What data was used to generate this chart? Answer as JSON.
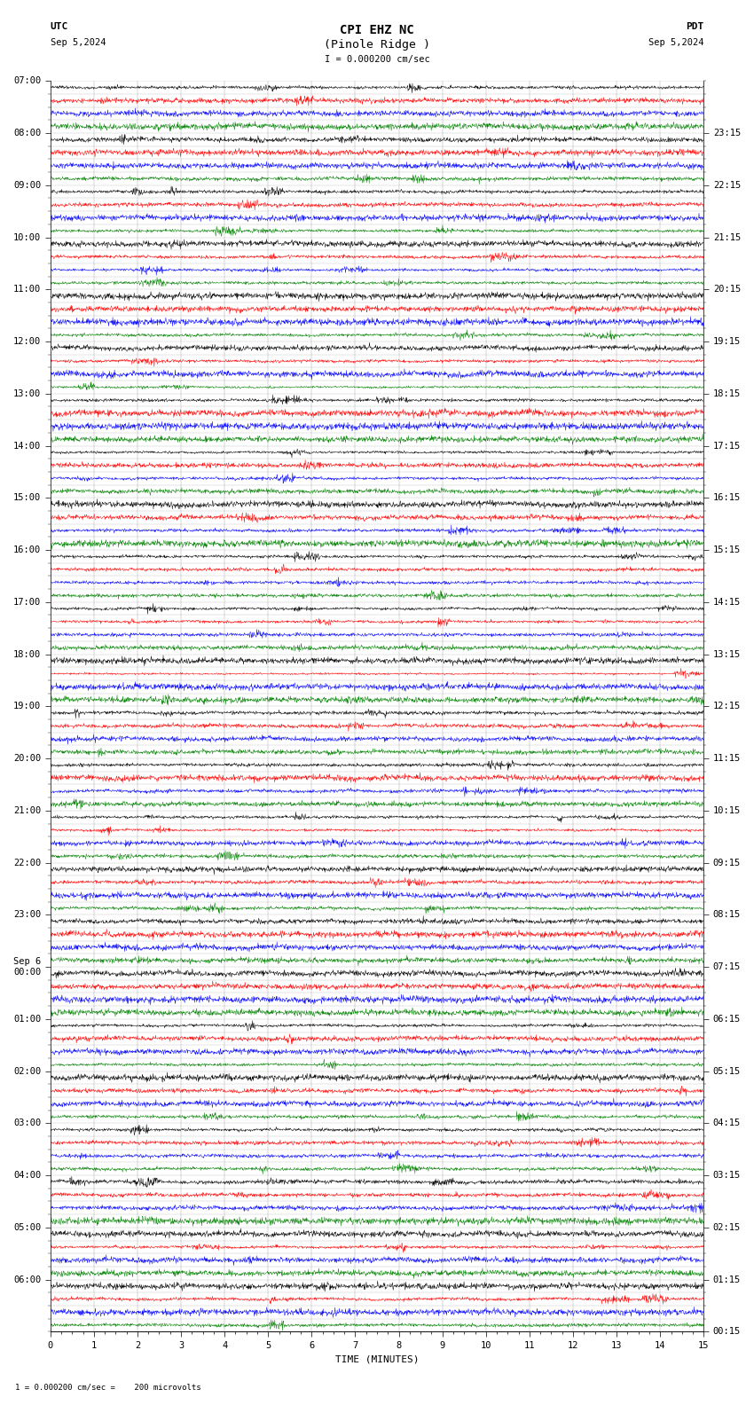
{
  "title_line1": "CPI EHZ NC",
  "title_line2": "(Pinole Ridge )",
  "scale_label": "= 0.000200 cm/sec",
  "utc_label": "UTC",
  "utc_date": "Sep 5,2024",
  "pdt_label": "PDT",
  "pdt_date": "Sep 5,2024",
  "bottom_label": "1 = 0.000200 cm/sec =    200 microvolts",
  "xlabel": "TIME (MINUTES)",
  "left_times_major": [
    "07:00",
    "08:00",
    "09:00",
    "10:00",
    "11:00",
    "12:00",
    "13:00",
    "14:00",
    "15:00",
    "16:00",
    "17:00",
    "18:00",
    "19:00",
    "20:00",
    "21:00",
    "22:00",
    "23:00",
    "Sep 6\n00:00",
    "01:00",
    "02:00",
    "03:00",
    "04:00",
    "05:00",
    "06:00"
  ],
  "right_times_major": [
    "00:15",
    "01:15",
    "02:15",
    "03:15",
    "04:15",
    "05:15",
    "06:15",
    "07:15",
    "08:15",
    "09:15",
    "10:15",
    "11:15",
    "12:15",
    "13:15",
    "14:15",
    "15:15",
    "16:15",
    "17:15",
    "18:15",
    "19:15",
    "20:15",
    "21:15",
    "22:15",
    "23:15"
  ],
  "num_hour_groups": 24,
  "traces_per_group": 4,
  "trace_colors": [
    "black",
    "red",
    "blue",
    "green"
  ],
  "minutes": 15,
  "background_color": "white",
  "grid_color": "#999999",
  "title_fontsize": 10,
  "tick_fontsize": 7.5,
  "label_fontsize": 8
}
